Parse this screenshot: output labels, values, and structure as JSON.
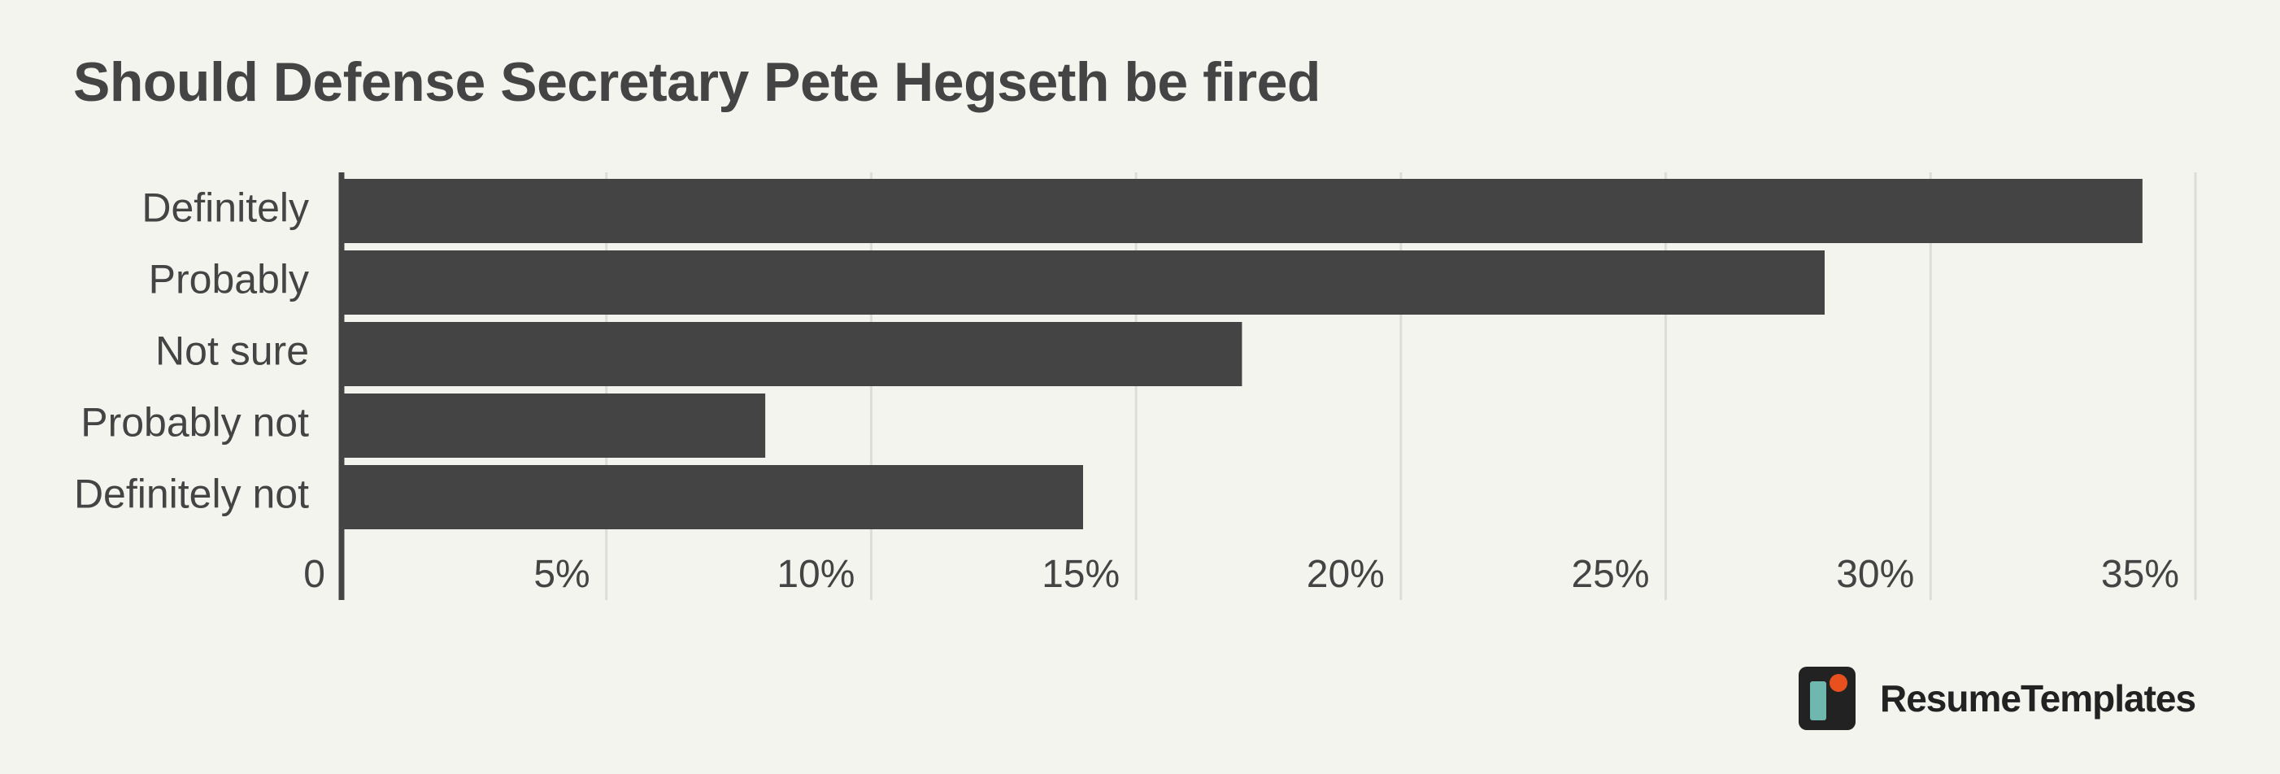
{
  "chart_data": {
    "type": "bar",
    "orientation": "horizontal",
    "title": "Should Defense Secretary Pete Hegseth be fired",
    "categories": [
      "Definitely",
      "Probably",
      "Not sure",
      "Probably not",
      "Definitely not"
    ],
    "values": [
      34,
      28,
      17,
      8,
      14
    ],
    "xlim": [
      0,
      35
    ],
    "xticks": [
      0,
      5,
      10,
      15,
      20,
      25,
      30,
      35
    ],
    "xtick_labels": [
      "0",
      "5%",
      "10%",
      "15%",
      "20%",
      "25%",
      "30%",
      "35%"
    ],
    "grid": "vertical",
    "bar_color": "#444444",
    "grid_color": "#dcddd6",
    "background": "#f3f4ee"
  },
  "brand": {
    "name": "ResumeTemplates",
    "logo_icon": "resume-templates-logo-icon",
    "logo_colors": [
      "#222222",
      "#6fb8b0",
      "#e8501e"
    ]
  }
}
